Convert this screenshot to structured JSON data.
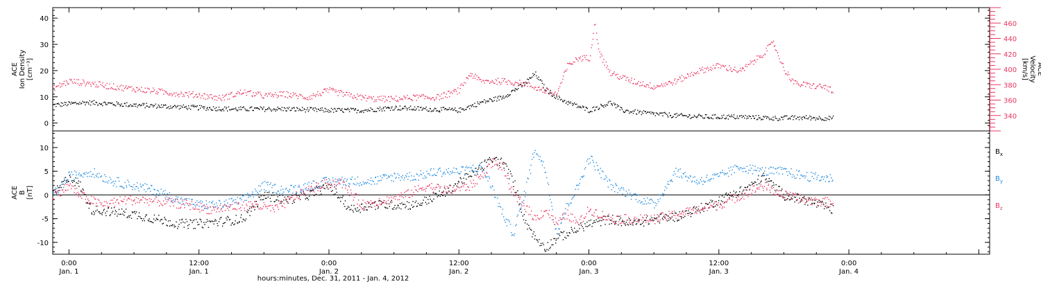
{
  "chart_data": [
    {
      "type": "scatter",
      "panel": "top",
      "ylabel_lines": [
        "ACE",
        "Ion Density",
        "[cm⁻³]"
      ],
      "ylim": [
        -3,
        44
      ],
      "y_ticks": [
        "0",
        "10",
        "20",
        "30",
        "40"
      ],
      "right_axis": {
        "label_lines": [
          "ACE",
          "Velocity",
          "[km/s]"
        ],
        "ylim": [
          320,
          480
        ],
        "ticks": [
          "340",
          "360",
          "380",
          "400",
          "420",
          "440",
          "460"
        ],
        "color": "#e8345e"
      },
      "series": [
        {
          "name": "Ion Density",
          "color": "#000000",
          "x": [
            -1.5,
            1.5,
            4,
            6,
            9,
            12,
            15,
            18,
            20,
            24,
            27,
            30,
            33,
            36,
            38,
            40,
            42,
            43,
            44,
            45,
            46,
            48,
            50,
            51,
            53,
            56,
            59,
            62,
            65,
            68,
            70.5
          ],
          "y": [
            7,
            8,
            7.5,
            7,
            6.5,
            6,
            5.5,
            5.5,
            5.5,
            5,
            5,
            6,
            5.5,
            5,
            8,
            10,
            15,
            19,
            13,
            10,
            8,
            5,
            8,
            5,
            4,
            3,
            2.5,
            2.5,
            2,
            2.2,
            2
          ]
        },
        {
          "name": "Velocity",
          "color": "#e8345e",
          "axis": "right",
          "x": [
            -1.5,
            0,
            2,
            4,
            6,
            8,
            10,
            12,
            14,
            16,
            18,
            20,
            22,
            24,
            26,
            28,
            30,
            32,
            34,
            36,
            37,
            38,
            40,
            42,
            44,
            45,
            46,
            47,
            48,
            48.5,
            49,
            50,
            52,
            54,
            56,
            58,
            60,
            62,
            64,
            65,
            66,
            67,
            68,
            70,
            70.5
          ],
          "y": [
            376,
            385,
            382,
            378,
            375,
            372,
            369,
            367,
            363,
            371,
            366,
            368,
            364,
            373,
            366,
            362,
            362,
            364,
            364,
            373,
            395,
            385,
            385,
            382,
            372,
            368,
            405,
            415,
            415,
            460,
            420,
            395,
            385,
            378,
            385,
            398,
            405,
            398,
            420,
            435,
            400,
            382,
            380,
            377,
            370
          ]
        }
      ]
    },
    {
      "type": "scatter",
      "panel": "bottom",
      "ylabel_lines": [
        "ACE",
        "B",
        "[nT]"
      ],
      "ylim": [
        -12.5,
        13.5
      ],
      "y_ticks": [
        "-10",
        "-5",
        "0",
        "5",
        "10"
      ],
      "series": [
        {
          "name": "Bx",
          "color": "#000000",
          "x": [
            -1.5,
            0,
            1,
            2,
            4,
            6,
            8,
            10,
            12,
            14,
            16,
            18,
            20,
            22,
            24,
            26,
            28,
            30,
            32,
            34,
            35,
            36,
            37,
            38,
            39,
            40,
            41,
            42,
            43,
            44,
            45,
            46,
            47,
            48,
            50,
            52,
            54,
            56,
            58,
            60,
            62,
            63,
            64,
            66,
            68,
            70.5
          ],
          "y": [
            0,
            4,
            2,
            -3,
            -3.5,
            -4,
            -5,
            -6,
            -6,
            -5.5,
            -5,
            0,
            -1,
            0,
            2,
            -3,
            -2,
            -2,
            -2,
            0,
            1,
            3,
            4,
            6,
            7.5,
            7,
            3,
            -5,
            -9,
            -11,
            -9,
            -8,
            -7,
            -6,
            -5,
            -6,
            -5,
            -4.5,
            -3,
            -1,
            1,
            2,
            4,
            0,
            -1,
            -3
          ]
        },
        {
          "name": "By",
          "color": "#1f8be0",
          "x": [
            -1.5,
            0,
            2,
            4,
            6,
            8,
            10,
            12,
            14,
            16,
            18,
            20,
            22,
            24,
            26,
            28,
            30,
            32,
            34,
            36,
            38,
            39,
            40,
            41,
            42,
            43,
            44,
            45,
            46,
            47,
            48,
            49,
            50,
            52,
            54,
            56,
            58,
            60,
            62,
            64,
            66,
            68,
            70.5
          ],
          "y": [
            0,
            4,
            5,
            3,
            2,
            1,
            -1,
            -2,
            -2,
            -1,
            2,
            1,
            2,
            3,
            3,
            3,
            4,
            4,
            5,
            5,
            6,
            2,
            -4,
            -8,
            0,
            10,
            5,
            -8,
            -2,
            2,
            8,
            5,
            2,
            0,
            -2,
            5,
            3,
            4,
            6,
            5,
            5,
            4,
            3.5
          ]
        },
        {
          "name": "Bz",
          "color": "#e8345e",
          "x": [
            -1.5,
            0,
            1,
            3,
            5,
            7,
            9,
            11,
            13,
            15,
            17,
            19,
            21,
            23,
            25,
            27,
            29,
            31,
            33,
            35,
            37,
            38,
            39,
            40,
            41,
            42,
            43,
            44,
            45,
            46,
            47,
            48,
            50,
            52,
            54,
            56,
            58,
            60,
            62,
            64,
            66,
            68,
            70.5
          ],
          "y": [
            0,
            2,
            0,
            -2,
            -1,
            -1,
            -1.5,
            -2,
            -3,
            -2.5,
            -2,
            -3,
            0,
            2,
            3,
            -2,
            -1,
            0,
            2,
            1,
            2,
            4,
            7,
            6,
            0,
            -2,
            -5,
            -3,
            -6,
            -4,
            -6,
            -3,
            -5,
            -5,
            -5,
            -4,
            -3,
            -2,
            0,
            2,
            0,
            -1,
            -1.5
          ]
        }
      ]
    }
  ],
  "x_axis": {
    "range_hours": [
      -1.5,
      85
    ],
    "ticks": [
      {
        "hour": 0,
        "time": "0:00",
        "day": "Jan. 1"
      },
      {
        "hour": 12,
        "time": "12:00",
        "day": "Jan. 1"
      },
      {
        "hour": 24,
        "time": "0:00",
        "day": "Jan. 2"
      },
      {
        "hour": 36,
        "time": "12:00",
        "day": "Jan. 2"
      },
      {
        "hour": 48,
        "time": "0:00",
        "day": "Jan. 3"
      },
      {
        "hour": 60,
        "time": "12:00",
        "day": "Jan. 3"
      },
      {
        "hour": 72,
        "time": "0:00",
        "day": "Jan. 4"
      }
    ],
    "title": "hours:minutes, Dec. 31, 2011 - Jan.  4, 2012"
  },
  "legend": [
    {
      "label": "B",
      "sub": "x",
      "color": "#000000"
    },
    {
      "label": "B",
      "sub": "y",
      "color": "#1f8be0"
    },
    {
      "label": "B",
      "sub": "z",
      "color": "#e8345e"
    }
  ]
}
